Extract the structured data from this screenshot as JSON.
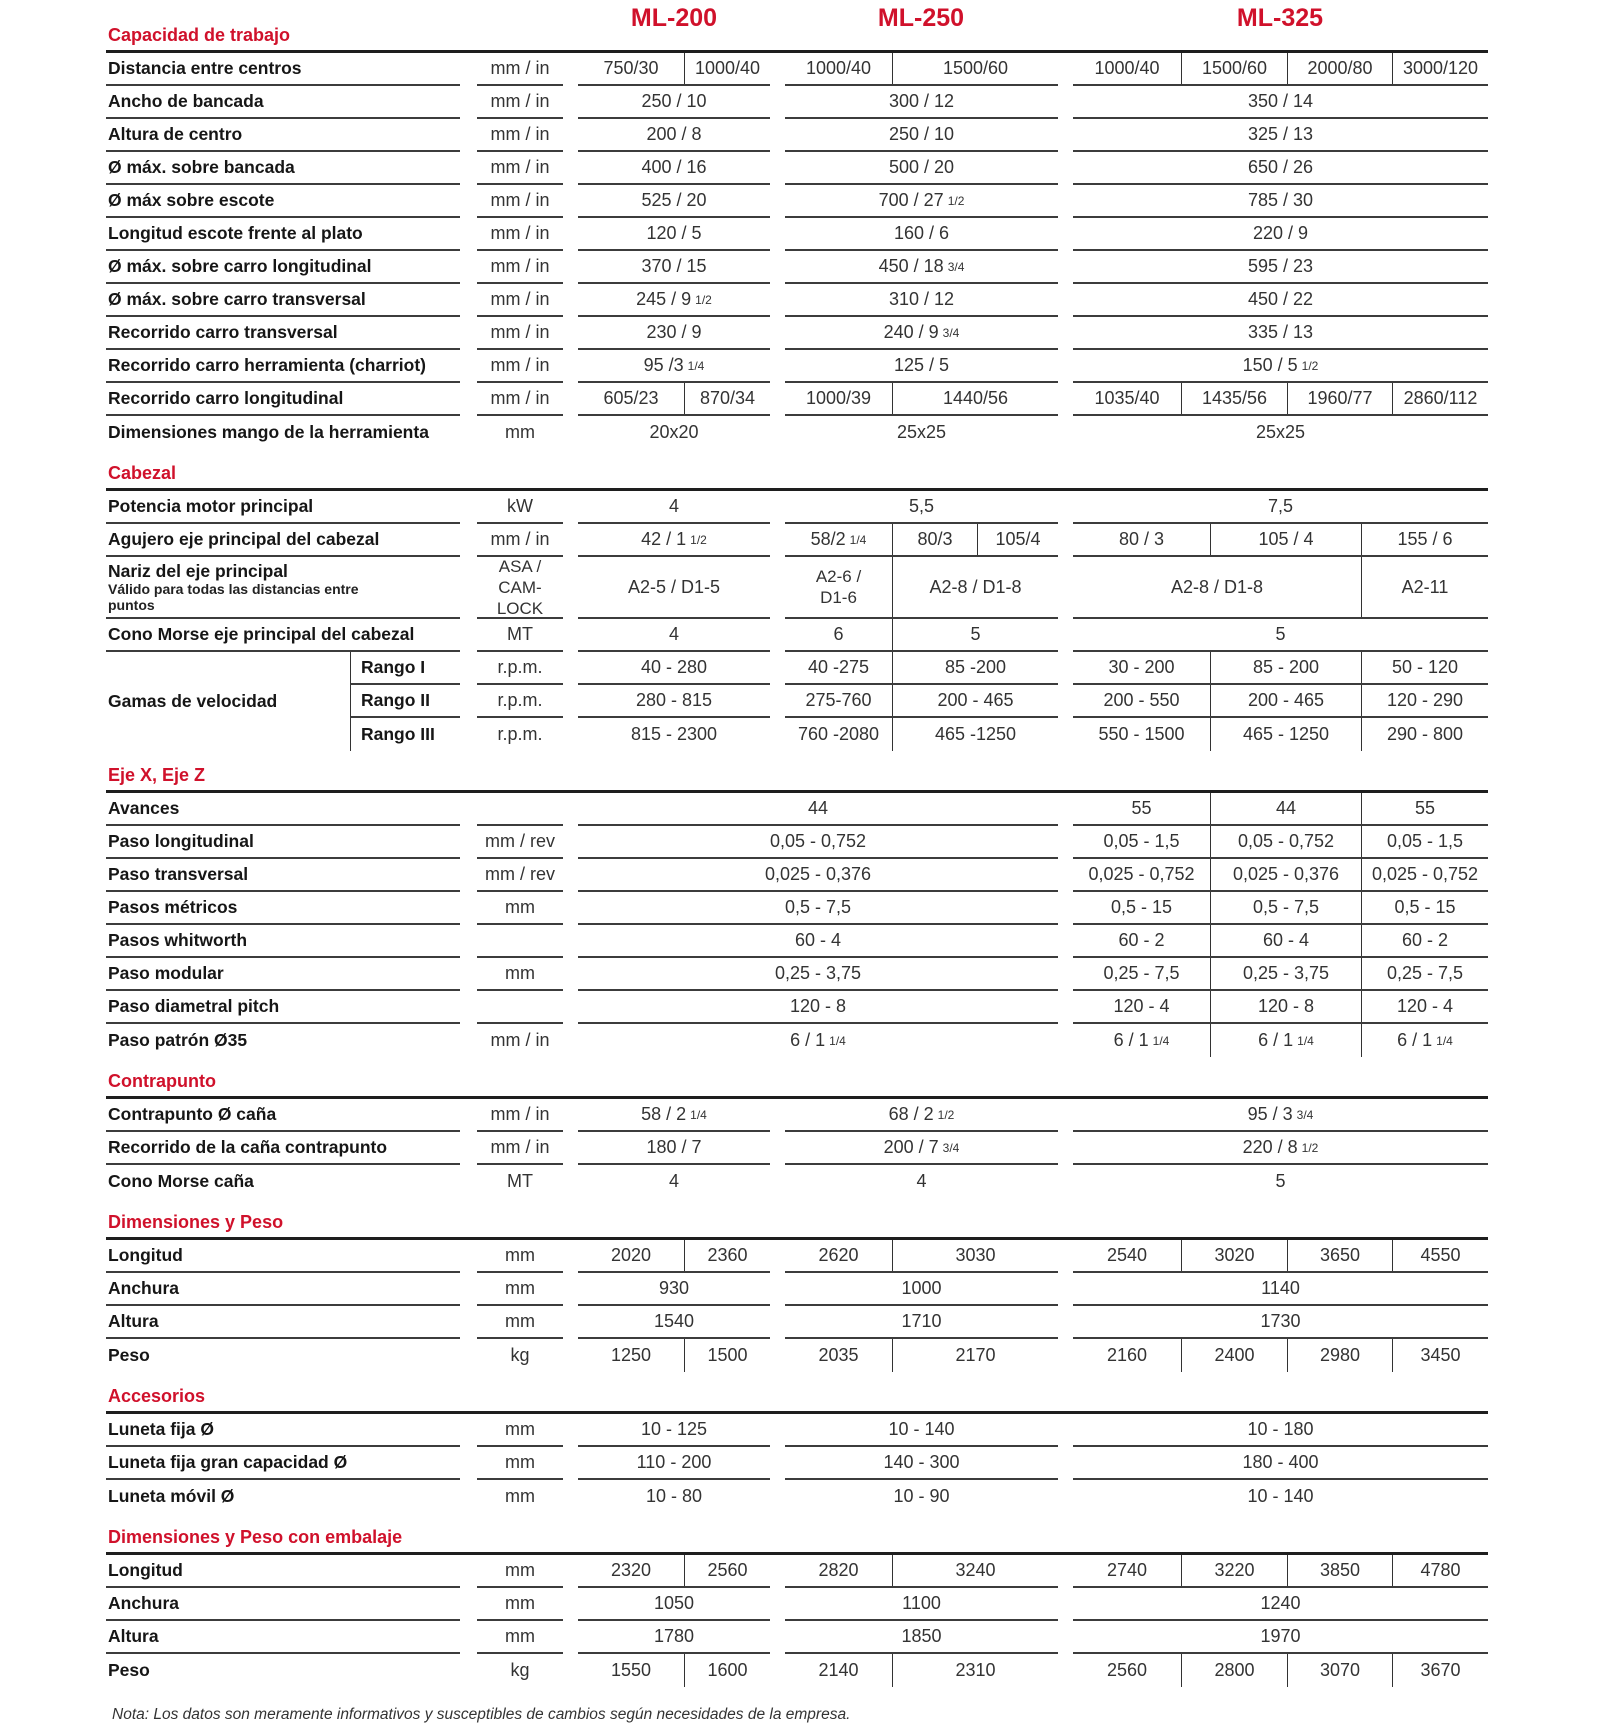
{
  "accent_color": "#d0112b",
  "models": [
    "ML-200",
    "ML-250",
    "ML-325"
  ],
  "sections": [
    {
      "title": "Capacidad de trabajo",
      "rows": [
        {
          "label": "Distancia entre centros",
          "unit": "mm / in",
          "ml200": [
            "750/30",
            "1000/40"
          ],
          "ml250": [
            "1000/40",
            "1500/60"
          ],
          "ml325": [
            "1000/40",
            "1500/60",
            "2000/80",
            "3000/120"
          ]
        },
        {
          "label": "Ancho de bancada",
          "unit": "mm / in",
          "ml200": [
            "250 / 10"
          ],
          "ml250": [
            "300 / 12"
          ],
          "ml325": [
            "350 / 14"
          ]
        },
        {
          "label": "Altura de centro",
          "unit": "mm / in",
          "ml200": [
            "200 / 8"
          ],
          "ml250": [
            "250 / 10"
          ],
          "ml325": [
            "325 / 13"
          ]
        },
        {
          "label": "Ø máx. sobre bancada",
          "unit": "mm / in",
          "ml200": [
            "400 / 16"
          ],
          "ml250": [
            "500 / 20"
          ],
          "ml325": [
            "650 / 26"
          ]
        },
        {
          "label": "Ø máx sobre escote",
          "unit": "mm / in",
          "ml200": [
            "525 / 20"
          ],
          "ml250": [
            "700 / 27 1/2"
          ],
          "ml325": [
            "785 / 30"
          ]
        },
        {
          "label": "Longitud escote frente al plato",
          "unit": "mm / in",
          "ml200": [
            "120 / 5"
          ],
          "ml250": [
            "160 / 6"
          ],
          "ml325": [
            "220 / 9"
          ]
        },
        {
          "label": "Ø máx. sobre carro longitudinal",
          "unit": "mm / in",
          "ml200": [
            "370 / 15"
          ],
          "ml250": [
            "450 / 18 3/4"
          ],
          "ml325": [
            "595 / 23"
          ]
        },
        {
          "label": "Ø máx. sobre carro transversal",
          "unit": "mm / in",
          "ml200": [
            "245 / 9 1/2"
          ],
          "ml250": [
            "310 / 12"
          ],
          "ml325": [
            "450 / 22"
          ]
        },
        {
          "label": "Recorrido carro transversal",
          "unit": "mm / in",
          "ml200": [
            "230 / 9"
          ],
          "ml250": [
            "240 / 9 3/4"
          ],
          "ml325": [
            "335 / 13"
          ]
        },
        {
          "label": "Recorrido carro herramienta (charriot)",
          "unit": "mm / in",
          "ml200": [
            "95 /3 1/4"
          ],
          "ml250": [
            "125 / 5"
          ],
          "ml325": [
            "150 / 5 1/2"
          ]
        },
        {
          "label": "Recorrido carro longitudinal",
          "unit": "mm / in",
          "ml200": [
            "605/23",
            "870/34"
          ],
          "ml250": [
            "1000/39",
            "1440/56"
          ],
          "ml325": [
            "1035/40",
            "1435/56",
            "1960/77",
            "2860/112"
          ]
        },
        {
          "label": "Dimensiones mango de la herramienta",
          "unit": "mm",
          "ml200": [
            "20x20"
          ],
          "ml250": [
            "25x25"
          ],
          "ml325": [
            "25x25"
          ]
        }
      ]
    },
    {
      "title": "Cabezal",
      "rows": [
        {
          "label": "Potencia motor principal",
          "unit": "kW",
          "ml200": [
            "4"
          ],
          "ml250": [
            "5,5"
          ],
          "ml325": [
            "7,5"
          ]
        },
        {
          "label": "Agujero eje principal del cabezal",
          "unit": "mm / in",
          "ml200": [
            "42 / 1 1/2"
          ],
          "ml250": [
            "58/2 1/4",
            "80/3",
            "105/4"
          ],
          "ml325": [
            "80 / 3",
            "105 / 4",
            "155 / 6"
          ]
        },
        {
          "label": "Nariz del eje principal",
          "sublabel": "Válido para todas las distancias entre puntos",
          "unit": "ASA / CAM-LOCK",
          "ml200": [
            "A2-5 / D1-5"
          ],
          "ml250": [
            "A2-6 / D1-6",
            "A2-8 / D1-8"
          ],
          "ml325": [
            "A2-8 / D1-8",
            "A2-11"
          ]
        },
        {
          "label": "Cono Morse eje principal del cabezal",
          "unit": "MT",
          "ml200": [
            "4"
          ],
          "ml250": [
            "6",
            "5"
          ],
          "ml325": [
            "5"
          ]
        },
        {
          "group_label": "Gamas de velocidad",
          "ranges": [
            {
              "label": "Rango I",
              "unit": "r.p.m.",
              "ml200": [
                "40 - 280"
              ],
              "ml250": [
                "40 -275",
                "85 -200"
              ],
              "ml325": [
                "30 - 200",
                "85 - 200",
                "50 - 120"
              ]
            },
            {
              "label": "Rango II",
              "unit": "r.p.m.",
              "ml200": [
                "280 - 815"
              ],
              "ml250": [
                "275-760",
                "200 - 465"
              ],
              "ml325": [
                "200 - 550",
                "200 - 465",
                "120 - 290"
              ]
            },
            {
              "label": "Rango III",
              "unit": "r.p.m.",
              "ml200": [
                "815 - 2300"
              ],
              "ml250": [
                "760 -2080",
                "465 -1250"
              ],
              "ml325": [
                "550 - 1500",
                "465 - 1250",
                "290 - 800"
              ]
            }
          ]
        }
      ]
    },
    {
      "title": "Eje X, Eje Z",
      "rows": [
        {
          "label": "Avances",
          "unit": "",
          "ml200_250": [
            "44"
          ],
          "ml325": [
            "55",
            "44",
            "55"
          ]
        },
        {
          "label": "Paso longitudinal",
          "unit": "mm / rev",
          "ml200_250": [
            "0,05 - 0,752"
          ],
          "ml325": [
            "0,05 - 1,5",
            "0,05 - 0,752",
            "0,05 - 1,5"
          ]
        },
        {
          "label": "Paso transversal",
          "unit": "mm / rev",
          "ml200_250": [
            "0,025 - 0,376"
          ],
          "ml325": [
            "0,025 - 0,752",
            "0,025 - 0,376",
            "0,025 - 0,752"
          ]
        },
        {
          "label": "Pasos métricos",
          "unit": "mm",
          "ml200_250": [
            "0,5 - 7,5"
          ],
          "ml325": [
            "0,5 - 15",
            "0,5 - 7,5",
            "0,5 - 15"
          ]
        },
        {
          "label": "Pasos whitworth",
          "unit": "",
          "ml200_250": [
            "60 - 4"
          ],
          "ml325": [
            "60 - 2",
            "60 - 4",
            "60 - 2"
          ]
        },
        {
          "label": "Paso modular",
          "unit": "mm",
          "ml200_250": [
            "0,25 - 3,75"
          ],
          "ml325": [
            "0,25 - 7,5",
            "0,25 - 3,75",
            "0,25 - 7,5"
          ]
        },
        {
          "label": "Paso diametral pitch",
          "unit": "",
          "ml200_250": [
            "120 - 8"
          ],
          "ml325": [
            "120 - 4",
            "120 - 8",
            "120 - 4"
          ]
        },
        {
          "label": "Paso patrón Ø35",
          "unit": "mm / in",
          "ml200_250": [
            "6 / 1 1/4"
          ],
          "ml325": [
            "6 / 1 1/4",
            "6 / 1 1/4",
            "6 / 1 1/4"
          ]
        }
      ]
    },
    {
      "title": "Contrapunto",
      "rows": [
        {
          "label": "Contrapunto Ø caña",
          "unit": "mm / in",
          "ml200": [
            "58 / 2 1/4"
          ],
          "ml250": [
            "68 / 2 1/2"
          ],
          "ml325": [
            "95 / 3 3/4"
          ]
        },
        {
          "label": "Recorrido de la caña contrapunto",
          "unit": "mm / in",
          "ml200": [
            "180 / 7"
          ],
          "ml250": [
            "200 / 7 3/4"
          ],
          "ml325": [
            "220 / 8 1/2"
          ]
        },
        {
          "label": "Cono Morse caña",
          "unit": "MT",
          "ml200": [
            "4"
          ],
          "ml250": [
            "4"
          ],
          "ml325": [
            "5"
          ]
        }
      ]
    },
    {
      "title": "Dimensiones y Peso",
      "rows": [
        {
          "label": "Longitud",
          "unit": "mm",
          "ml200": [
            "2020",
            "2360"
          ],
          "ml250": [
            "2620",
            "3030"
          ],
          "ml325": [
            "2540",
            "3020",
            "3650",
            "4550"
          ]
        },
        {
          "label": "Anchura",
          "unit": "mm",
          "ml200": [
            "930"
          ],
          "ml250": [
            "1000"
          ],
          "ml325": [
            "1140"
          ]
        },
        {
          "label": "Altura",
          "unit": "mm",
          "ml200": [
            "1540"
          ],
          "ml250": [
            "1710"
          ],
          "ml325": [
            "1730"
          ]
        },
        {
          "label": "Peso",
          "unit": "kg",
          "ml200": [
            "1250",
            "1500"
          ],
          "ml250": [
            "2035",
            "2170"
          ],
          "ml325": [
            "2160",
            "2400",
            "2980",
            "3450"
          ]
        }
      ]
    },
    {
      "title": "Accesorios",
      "rows": [
        {
          "label": "Luneta fija Ø",
          "unit": "mm",
          "ml200": [
            "10 - 125"
          ],
          "ml250": [
            "10 - 140"
          ],
          "ml325": [
            "10 - 180"
          ]
        },
        {
          "label": "Luneta fija gran capacidad Ø",
          "unit": "mm",
          "ml200": [
            "110 - 200"
          ],
          "ml250": [
            "140 - 300"
          ],
          "ml325": [
            "180 - 400"
          ]
        },
        {
          "label": "Luneta móvil Ø",
          "unit": "mm",
          "ml200": [
            "10 - 80"
          ],
          "ml250": [
            "10 - 90"
          ],
          "ml325": [
            "10 - 140"
          ]
        }
      ]
    },
    {
      "title": "Dimensiones y Peso con embalaje",
      "rows": [
        {
          "label": "Longitud",
          "unit": "mm",
          "ml200": [
            "2320",
            "2560"
          ],
          "ml250": [
            "2820",
            "3240"
          ],
          "ml325": [
            "2740",
            "3220",
            "3850",
            "4780"
          ]
        },
        {
          "label": "Anchura",
          "unit": "mm",
          "ml200": [
            "1050"
          ],
          "ml250": [
            "1100"
          ],
          "ml325": [
            "1240"
          ]
        },
        {
          "label": "Altura",
          "unit": "mm",
          "ml200": [
            "1780"
          ],
          "ml250": [
            "1850"
          ],
          "ml325": [
            "1970"
          ]
        },
        {
          "label": "Peso",
          "unit": "kg",
          "ml200": [
            "1550",
            "1600"
          ],
          "ml250": [
            "2140",
            "2310"
          ],
          "ml325": [
            "2560",
            "2800",
            "3070",
            "3670"
          ]
        }
      ]
    }
  ],
  "note": "Nota: Los datos son meramente informativos y susceptibles de cambios según necesidades de la empresa."
}
